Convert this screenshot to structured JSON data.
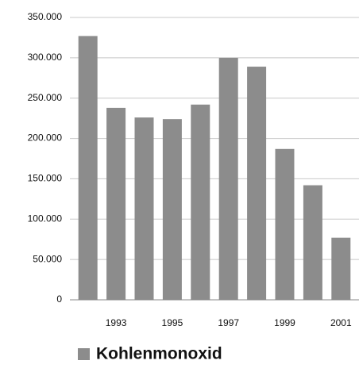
{
  "chart_data": {
    "type": "bar",
    "categories": [
      null,
      "1993",
      null,
      "1995",
      null,
      "1997",
      null,
      "1999",
      null,
      "2001"
    ],
    "series": [
      {
        "name": "Kohlenmonoxid",
        "color": "#8c8c8c",
        "values": [
          327000,
          238000,
          226000,
          224000,
          242000,
          300000,
          289000,
          187000,
          142000,
          77000
        ]
      }
    ],
    "ylim": [
      0,
      350000
    ],
    "yticks": [
      0,
      {
        "value": 50000,
        "label": "50.000"
      },
      {
        "value": 100000,
        "label": "100.000"
      },
      {
        "value": 150000,
        "label": "150.000"
      },
      {
        "value": 200000,
        "label": "200.000"
      },
      {
        "value": 250000,
        "label": "250.000"
      },
      {
        "value": 300000,
        "label": "300.000"
      },
      {
        "value": 350000,
        "label": "350.000"
      }
    ],
    "grid": true,
    "legend": "bottom"
  }
}
